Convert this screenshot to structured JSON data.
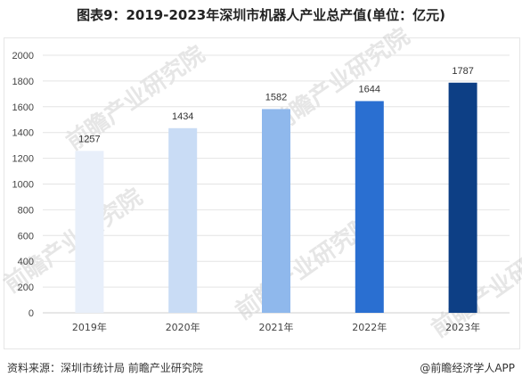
{
  "title": "图表9：2019-2023年深圳市机器人产业总产值(单位：亿元)",
  "source": "资料来源：深圳市统计局 前瞻产业研究院",
  "brand": "@前瞻经济学人APP",
  "watermark_text": "前瞻产业研究院",
  "chart_data": {
    "type": "bar",
    "title": "图表9：2019-2023年深圳市机器人产业总产值(单位：亿元)",
    "categories": [
      "2019年",
      "2020年",
      "2021年",
      "2022年",
      "2023年"
    ],
    "values": [
      1257,
      1434,
      1582,
      1644,
      1787
    ],
    "colors": [
      "#e8effa",
      "#c9dcf5",
      "#8fb8ec",
      "#2a6fd1",
      "#0d3f85"
    ],
    "ylim": [
      0,
      2000
    ],
    "yticks": [
      0,
      200,
      400,
      600,
      800,
      1000,
      1200,
      1400,
      1600,
      1800,
      2000
    ],
    "xlabel": "",
    "ylabel": "",
    "grid": true,
    "legend": "none"
  }
}
